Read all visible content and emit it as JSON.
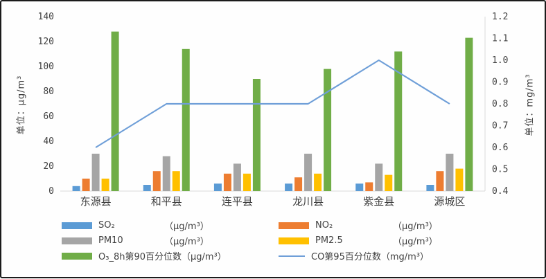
{
  "frame": {
    "background": "#fefefe",
    "border_color": "#1b1b1b"
  },
  "chart_data": {
    "type": "bar+line combo",
    "categories": [
      "东源县",
      "和平县",
      "连平县",
      "龙川县",
      "紫金县",
      "源城区"
    ],
    "series": [
      {
        "name": "SO₂",
        "unit": "（μg/m³）",
        "type": "bar",
        "axis": "left",
        "color": "#5B9BD5",
        "values": [
          4,
          5,
          6,
          6,
          6,
          5
        ]
      },
      {
        "name": "NO₂",
        "unit": "（μg/m³）",
        "type": "bar",
        "axis": "left",
        "color": "#ED7D31",
        "values": [
          10,
          16,
          14,
          11,
          7,
          16
        ]
      },
      {
        "name": "PM10",
        "unit": "（μg/m³）",
        "type": "bar",
        "axis": "left",
        "color": "#A5A5A5",
        "values": [
          30,
          28,
          22,
          30,
          22,
          30
        ]
      },
      {
        "name": "PM2.5",
        "unit": "（μg/m³）",
        "type": "bar",
        "axis": "left",
        "color": "#FFC000",
        "values": [
          10,
          16,
          14,
          14,
          13,
          18
        ]
      },
      {
        "name": "O₃_8h第90百分位数",
        "unit": "（μg/m³）",
        "type": "bar",
        "axis": "left",
        "color": "#70AD47",
        "values": [
          128,
          114,
          90,
          98,
          112,
          123
        ]
      },
      {
        "name": "CO第95百分位数",
        "unit": "（mg/m³）",
        "type": "line",
        "axis": "right",
        "color": "#6F9FD8",
        "values": [
          0.6,
          0.8,
          0.8,
          0.8,
          1.0,
          0.8
        ]
      }
    ],
    "left_axis": {
      "title": "单位：μg/m³",
      "min": 0,
      "max": 140,
      "step": 20,
      "tick_labels": [
        "0",
        "20",
        "40",
        "60",
        "80",
        "100",
        "120",
        "140"
      ]
    },
    "right_axis": {
      "title": "单位：mg/m³",
      "min": 0.4,
      "max": 1.2,
      "step": 0.1,
      "tick_labels": [
        "0.4",
        "0.5",
        "0.6",
        "0.7",
        "0.8",
        "0.9",
        "1.0",
        "1.1",
        "1.2"
      ]
    },
    "grid": false,
    "legend_position": "bottom",
    "axis_line_color": "#d9d9d9",
    "text_color": "#3f3f3f"
  }
}
